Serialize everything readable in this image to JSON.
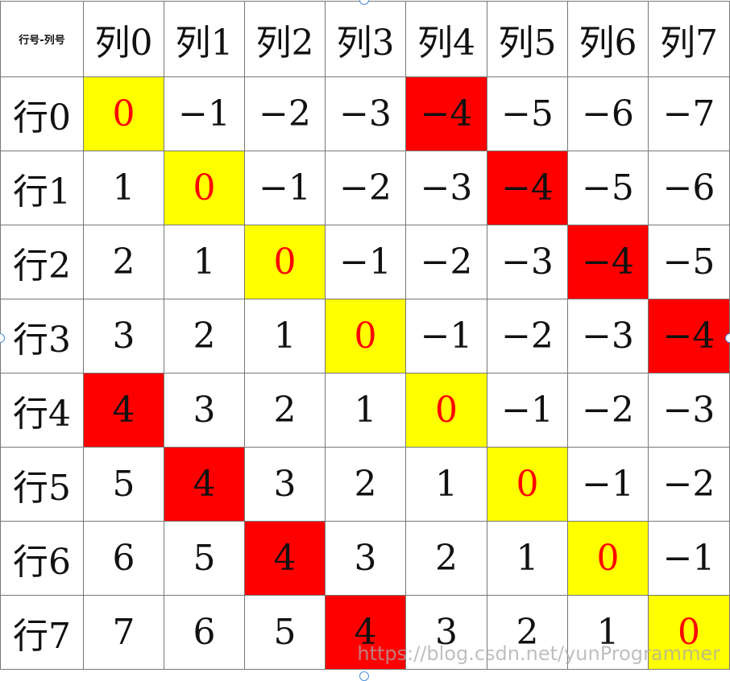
{
  "table": {
    "corner_label": "行号-列号",
    "columns": [
      "列0",
      "列1",
      "列2",
      "列3",
      "列4",
      "列5",
      "列6",
      "列7"
    ],
    "rows": [
      {
        "label": "行0",
        "cells": [
          "0",
          "−1",
          "−2",
          "−3",
          "−4",
          "−5",
          "−6",
          "−7"
        ]
      },
      {
        "label": "行1",
        "cells": [
          "1",
          "0",
          "−1",
          "−2",
          "−3",
          "−4",
          "−5",
          "−6"
        ]
      },
      {
        "label": "行2",
        "cells": [
          "2",
          "1",
          "0",
          "−1",
          "−2",
          "−3",
          "−4",
          "−5"
        ]
      },
      {
        "label": "行3",
        "cells": [
          "3",
          "2",
          "1",
          "0",
          "−1",
          "−2",
          "−3",
          "−4"
        ]
      },
      {
        "label": "行4",
        "cells": [
          "4",
          "3",
          "2",
          "1",
          "0",
          "−1",
          "−2",
          "−3"
        ]
      },
      {
        "label": "行5",
        "cells": [
          "5",
          "4",
          "3",
          "2",
          "1",
          "0",
          "−1",
          "−2"
        ]
      },
      {
        "label": "行6",
        "cells": [
          "6",
          "5",
          "4",
          "3",
          "2",
          "1",
          "0",
          "−1"
        ]
      },
      {
        "label": "行7",
        "cells": [
          "7",
          "6",
          "5",
          "4",
          "3",
          "2",
          "1",
          "0"
        ]
      }
    ]
  },
  "colors": {
    "zero_fill": "#ffff00",
    "zero_text": "#ff0000",
    "four_fill": "#ff0000",
    "grid_line": "#777777"
  },
  "watermark": "https://blog.csdn.net/yunProgrammer"
}
